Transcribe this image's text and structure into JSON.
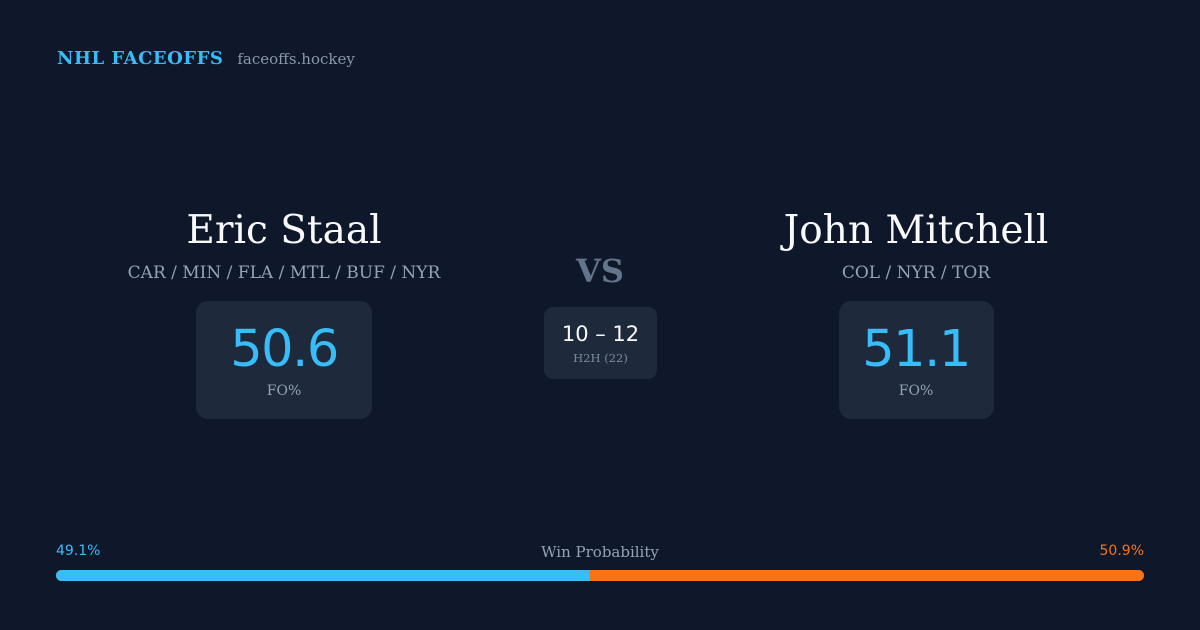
{
  "brand": {
    "name": "NHL FACEOFFS",
    "url": "faceoffs.hockey"
  },
  "players": [
    {
      "name": "Eric Staal",
      "teams": "CAR / MIN / FLA / MTL / BUF / NYR",
      "fo_value": "50.6",
      "fo_label": "FO%"
    },
    {
      "name": "John Mitchell",
      "teams": "COL / NYR / TOR",
      "fo_value": "51.1",
      "fo_label": "FO%"
    }
  ],
  "vs_label": "VS",
  "h2h": {
    "score": "10 – 12",
    "label": "H2H (22)"
  },
  "win_probability": {
    "title": "Win Probability",
    "left_label": "49.1%",
    "right_label": "50.9%",
    "left_fraction": 0.491,
    "left_color": "#38bdf8",
    "right_color": "#f97316"
  },
  "colors": {
    "background": "#0f172a",
    "accent_blue": "#38bdf8",
    "accent_orange": "#f97316",
    "card": "#1e293b"
  }
}
